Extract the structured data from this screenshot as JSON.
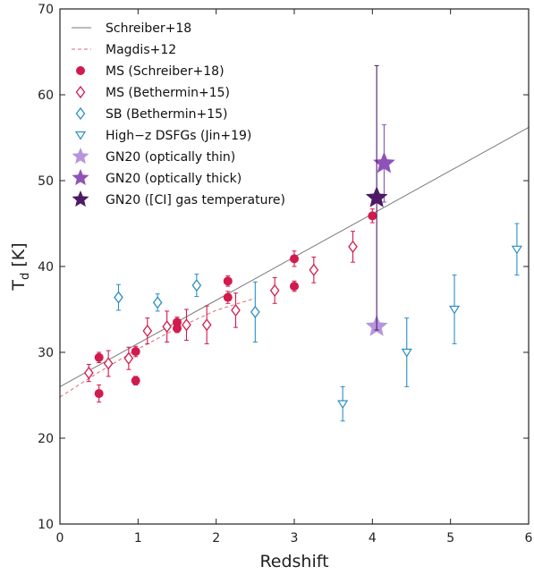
{
  "chart_data": {
    "type": "scatter",
    "xlabel": "Redshift",
    "ylabel_main": "T",
    "ylabel_sub": "d",
    "ylabel_unit": " [K]",
    "xlim": [
      0,
      6
    ],
    "ylim": [
      10,
      70
    ],
    "xticks": [
      "0",
      "1",
      "2",
      "3",
      "4",
      "5",
      "6"
    ],
    "yticks": [
      "10",
      "20",
      "30",
      "40",
      "50",
      "60",
      "70"
    ],
    "legend_position": "upper-left",
    "colors": {
      "schreiber_line": "#7a7a7a",
      "magdis_line": "#e06a7a",
      "ms_crimson": "#d11a4d",
      "sb_blue": "#2b8fc4",
      "gn20_thin": "#b795dc",
      "gn20_thick": "#8f52b8",
      "gn20_ci": "#4d1a66"
    },
    "lines": [
      {
        "name": "Schreiber+18",
        "style": "solid",
        "x": [
          0,
          6
        ],
        "y": [
          26.0,
          56.2
        ]
      },
      {
        "name": "Magdis+12",
        "style": "dashed",
        "x": [
          0,
          0.5,
          1.0,
          1.5,
          2.0,
          2.5
        ],
        "y": [
          24.8,
          27.7,
          30.4,
          32.8,
          34.9,
          36.3
        ]
      }
    ],
    "series": [
      {
        "name": "MS (Schreiber+18)",
        "marker": "filled-circle",
        "points": [
          {
            "x": 0.5,
            "y": 29.4,
            "err": 0.6
          },
          {
            "x": 0.5,
            "y": 25.2,
            "err": 1.0
          },
          {
            "x": 0.97,
            "y": 30.1,
            "err": 0.6
          },
          {
            "x": 0.97,
            "y": 26.7,
            "err": 0.5
          },
          {
            "x": 1.5,
            "y": 33.5,
            "err": 0.6
          },
          {
            "x": 1.5,
            "y": 32.8,
            "err": 0.5
          },
          {
            "x": 2.15,
            "y": 38.3,
            "err": 0.6
          },
          {
            "x": 2.15,
            "y": 36.4,
            "err": 0.7
          },
          {
            "x": 3.0,
            "y": 40.9,
            "err": 0.9
          },
          {
            "x": 3.0,
            "y": 37.7,
            "err": 0.6
          },
          {
            "x": 4.0,
            "y": 45.9,
            "err": 0.8
          }
        ]
      },
      {
        "name": "MS (Bethermin+15)",
        "marker": "open-diamond",
        "points": [
          {
            "x": 0.37,
            "y": 27.6,
            "err": 1.0
          },
          {
            "x": 0.62,
            "y": 28.7,
            "err": 1.5
          },
          {
            "x": 0.88,
            "y": 29.3,
            "err": 1.3
          },
          {
            "x": 1.12,
            "y": 32.5,
            "err": 1.5
          },
          {
            "x": 1.37,
            "y": 33.0,
            "err": 1.8
          },
          {
            "x": 1.62,
            "y": 33.2,
            "err": 1.8
          },
          {
            "x": 1.88,
            "y": 33.2,
            "err": 2.2
          },
          {
            "x": 2.25,
            "y": 34.9,
            "err": 2.0
          },
          {
            "x": 2.75,
            "y": 37.2,
            "err": 1.5
          },
          {
            "x": 3.25,
            "y": 39.6,
            "err": 1.5
          },
          {
            "x": 3.75,
            "y": 42.3,
            "err": 1.8
          }
        ]
      },
      {
        "name": "SB (Bethermin+15)",
        "marker": "open-diamond",
        "points": [
          {
            "x": 0.75,
            "y": 36.4,
            "err": 1.5
          },
          {
            "x": 1.25,
            "y": 35.8,
            "err": 1.0
          },
          {
            "x": 1.75,
            "y": 37.8,
            "err": 1.3
          },
          {
            "x": 2.5,
            "y": 34.7,
            "err": 3.5
          }
        ]
      },
      {
        "name": "High−z DSFGs (Jin+19)",
        "marker": "open-triangle-down",
        "points": [
          {
            "x": 3.62,
            "y": 24.0,
            "err": 2.0
          },
          {
            "x": 4.44,
            "y": 30.0,
            "err": 4.0
          },
          {
            "x": 5.05,
            "y": 35.0,
            "err": 4.0
          },
          {
            "x": 5.85,
            "y": 42.0,
            "err": 3.0
          }
        ]
      },
      {
        "name": "GN20 (optically thin)",
        "marker": "star",
        "points": [
          {
            "x": 4.055,
            "y": 33.0,
            "err": 0
          }
        ]
      },
      {
        "name": "GN20 (optically thick)",
        "marker": "star",
        "points": [
          {
            "x": 4.15,
            "y": 52.0,
            "err": 4.5
          }
        ]
      },
      {
        "name": "GN20 ([CI] gas temperature)",
        "marker": "star",
        "points": [
          {
            "x": 4.055,
            "y": 48.0,
            "err": 15.4
          }
        ]
      }
    ]
  }
}
